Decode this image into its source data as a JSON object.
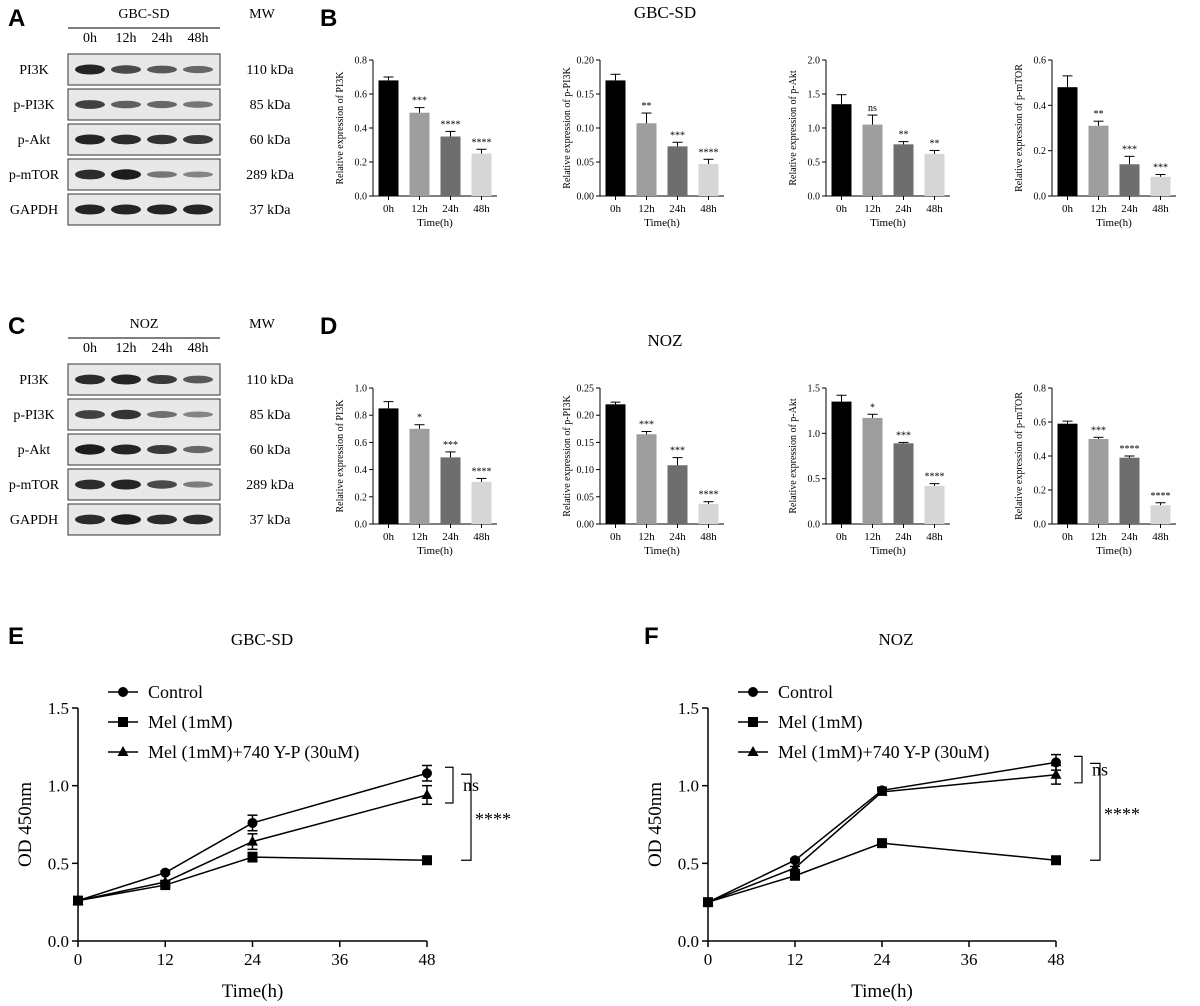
{
  "panels": {
    "A": {
      "letter": "A",
      "cell_line": "GBC-SD",
      "mw_header": "MW",
      "lanes": [
        "0h",
        "12h",
        "24h",
        "48h"
      ],
      "rows": [
        {
          "protein": "PI3K",
          "mw": "110 kDa",
          "intensity": [
            0.95,
            0.7,
            0.6,
            0.5
          ]
        },
        {
          "protein": "p-PI3K",
          "mw": "85 kDa",
          "intensity": [
            0.75,
            0.55,
            0.5,
            0.4
          ]
        },
        {
          "protein": "p-Akt",
          "mw": "60 kDa",
          "intensity": [
            0.95,
            0.9,
            0.85,
            0.8
          ]
        },
        {
          "protein": "p-mTOR",
          "mw": "289 kDa",
          "intensity": [
            0.9,
            1.0,
            0.4,
            0.3
          ]
        },
        {
          "protein": "GAPDH",
          "mw": "37 kDa",
          "intensity": [
            0.95,
            0.95,
            0.95,
            0.95
          ]
        }
      ]
    },
    "B": {
      "letter": "B",
      "title": "GBC-SD",
      "charts": [
        {
          "type": "bar",
          "ylabel": "Relative expression of PI3K",
          "xlabel": "Time(h)",
          "categories": [
            "0h",
            "12h",
            "24h",
            "48h"
          ],
          "values": [
            0.68,
            0.49,
            0.35,
            0.25
          ],
          "errors": [
            0.02,
            0.03,
            0.03,
            0.025
          ],
          "sig": [
            "",
            "***",
            "****",
            "****"
          ],
          "ylim": [
            0,
            0.8
          ],
          "yticks": [
            "0.0",
            "0.2",
            "0.4",
            "0.6",
            "0.8"
          ]
        },
        {
          "type": "bar",
          "ylabel": "Relative expression of p-PI3K",
          "xlabel": "Time(h)",
          "categories": [
            "0h",
            "12h",
            "24h",
            "48h"
          ],
          "values": [
            0.17,
            0.107,
            0.073,
            0.047
          ],
          "errors": [
            0.009,
            0.015,
            0.006,
            0.007
          ],
          "sig": [
            "",
            "**",
            "***",
            "****"
          ],
          "ylim": [
            0,
            0.2
          ],
          "yticks": [
            "0.00",
            "0.05",
            "0.10",
            "0.15",
            "0.20"
          ]
        },
        {
          "type": "bar",
          "ylabel": "Relative expression of p-Akt",
          "xlabel": "Time(h)",
          "categories": [
            "0h",
            "12h",
            "24h",
            "48h"
          ],
          "values": [
            1.35,
            1.05,
            0.76,
            0.62
          ],
          "errors": [
            0.14,
            0.14,
            0.04,
            0.05
          ],
          "sig": [
            "",
            "ns",
            "**",
            "**"
          ],
          "ylim": [
            0,
            2.0
          ],
          "yticks": [
            "0.0",
            "0.5",
            "1.0",
            "1.5",
            "2.0"
          ]
        },
        {
          "type": "bar",
          "ylabel": "Relative expression of p-mTOR",
          "xlabel": "Time(h)",
          "categories": [
            "0h",
            "12h",
            "24h",
            "48h"
          ],
          "values": [
            0.48,
            0.31,
            0.14,
            0.085
          ],
          "errors": [
            0.05,
            0.02,
            0.035,
            0.01
          ],
          "sig": [
            "",
            "**",
            "***",
            "***"
          ],
          "ylim": [
            0,
            0.6
          ],
          "yticks": [
            "0.0",
            "0.2",
            "0.4",
            "0.6"
          ]
        }
      ]
    },
    "C": {
      "letter": "C",
      "cell_line": "NOZ",
      "mw_header": "MW",
      "lanes": [
        "0h",
        "12h",
        "24h",
        "48h"
      ],
      "rows": [
        {
          "protein": "PI3K",
          "mw": "110 kDa",
          "intensity": [
            0.9,
            0.95,
            0.8,
            0.6
          ]
        },
        {
          "protein": "p-PI3K",
          "mw": "85 kDa",
          "intensity": [
            0.75,
            0.85,
            0.45,
            0.3
          ]
        },
        {
          "protein": "p-Akt",
          "mw": "60 kDa",
          "intensity": [
            1.0,
            0.95,
            0.8,
            0.5
          ]
        },
        {
          "protein": "p-mTOR",
          "mw": "289 kDa",
          "intensity": [
            0.9,
            0.95,
            0.7,
            0.35
          ]
        },
        {
          "protein": "GAPDH",
          "mw": "37 kDa",
          "intensity": [
            0.9,
            1.0,
            0.9,
            0.9
          ]
        }
      ]
    },
    "D": {
      "letter": "D",
      "title": "NOZ",
      "charts": [
        {
          "type": "bar",
          "ylabel": "Relative expression of PI3K",
          "xlabel": "Time(h)",
          "categories": [
            "0h",
            "12h",
            "24h",
            "48h"
          ],
          "values": [
            0.85,
            0.7,
            0.49,
            0.31
          ],
          "errors": [
            0.05,
            0.03,
            0.04,
            0.025
          ],
          "sig": [
            "",
            "*",
            "***",
            "****"
          ],
          "ylim": [
            0,
            1.0
          ],
          "yticks": [
            "0.0",
            "0.2",
            "0.4",
            "0.6",
            "0.8",
            "1.0"
          ]
        },
        {
          "type": "bar",
          "ylabel": "Relative expression of p-PI3K",
          "xlabel": "Time(h)",
          "categories": [
            "0h",
            "12h",
            "24h",
            "48h"
          ],
          "values": [
            0.22,
            0.165,
            0.108,
            0.037
          ],
          "errors": [
            0.004,
            0.005,
            0.014,
            0.004
          ],
          "sig": [
            "",
            "***",
            "***",
            "****"
          ],
          "ylim": [
            0,
            0.25
          ],
          "yticks": [
            "0.00",
            "0.05",
            "0.10",
            "0.15",
            "0.20",
            "0.25"
          ]
        },
        {
          "type": "bar",
          "ylabel": "Relative expression of p-Akt",
          "xlabel": "Time(h)",
          "categories": [
            "0h",
            "12h",
            "24h",
            "48h"
          ],
          "values": [
            1.35,
            1.17,
            0.89,
            0.42
          ],
          "errors": [
            0.07,
            0.04,
            0.01,
            0.025
          ],
          "sig": [
            "",
            "*",
            "***",
            "****"
          ],
          "ylim": [
            0,
            1.5
          ],
          "yticks": [
            "0.0",
            "0.5",
            "1.0",
            "1.5"
          ]
        },
        {
          "type": "bar",
          "ylabel": "Relative expression of p-mTOR",
          "xlabel": "Time(h)",
          "categories": [
            "0h",
            "12h",
            "24h",
            "48h"
          ],
          "values": [
            0.59,
            0.5,
            0.39,
            0.11
          ],
          "errors": [
            0.015,
            0.01,
            0.01,
            0.015
          ],
          "sig": [
            "",
            "***",
            "****",
            "****"
          ],
          "ylim": [
            0,
            0.8
          ],
          "yticks": [
            "0.0",
            "0.2",
            "0.4",
            "0.6",
            "0.8"
          ]
        }
      ]
    },
    "E": {
      "letter": "E",
      "title": "GBC-SD",
      "xlabel": "Time(h)",
      "ylabel": "OD 450nm",
      "xlim": [
        0,
        48
      ],
      "ylim": [
        0,
        1.5
      ],
      "xticks": [
        "0",
        "12",
        "24",
        "36",
        "48"
      ],
      "yticks": [
        "0.0",
        "0.5",
        "1.0",
        "1.5"
      ],
      "x": [
        0,
        12,
        24,
        48
      ],
      "series": [
        {
          "name": "Control",
          "marker": "circle",
          "values": [
            0.26,
            0.44,
            0.76,
            1.08
          ],
          "errors": [
            0,
            0.01,
            0.05,
            0.05
          ]
        },
        {
          "name": "Mel (1mM)",
          "marker": "square",
          "values": [
            0.26,
            0.36,
            0.54,
            0.52
          ],
          "errors": [
            0,
            0.01,
            0.03,
            0.01
          ]
        },
        {
          "name": "Mel (1mM)+740 Y-P (30uM)",
          "marker": "triangle",
          "values": [
            0.26,
            0.38,
            0.64,
            0.94
          ],
          "errors": [
            0,
            0.01,
            0.05,
            0.06
          ]
        }
      ],
      "annotations": [
        "ns",
        "****"
      ]
    },
    "F": {
      "letter": "F",
      "title": "NOZ",
      "xlabel": "Time(h)",
      "ylabel": "OD 450nm",
      "xlim": [
        0,
        48
      ],
      "ylim": [
        0,
        1.5
      ],
      "xticks": [
        "0",
        "12",
        "24",
        "36",
        "48"
      ],
      "yticks": [
        "0.0",
        "0.5",
        "1.0",
        "1.5"
      ],
      "x": [
        0,
        12,
        24,
        48
      ],
      "series": [
        {
          "name": "Control",
          "marker": "circle",
          "values": [
            0.25,
            0.52,
            0.97,
            1.15
          ],
          "errors": [
            0,
            0.01,
            0.02,
            0.05
          ]
        },
        {
          "name": "Mel (1mM)",
          "marker": "square",
          "values": [
            0.25,
            0.42,
            0.63,
            0.52
          ],
          "errors": [
            0,
            0.01,
            0.01,
            0.01
          ]
        },
        {
          "name": "Mel (1mM)+740 Y-P (30uM)",
          "marker": "triangle",
          "values": [
            0.25,
            0.47,
            0.96,
            1.07
          ],
          "errors": [
            0,
            0.01,
            0.02,
            0.06
          ]
        }
      ],
      "annotations": [
        "ns",
        "****"
      ]
    }
  },
  "chart_data": [
    {
      "type": "bar",
      "title": "GBC-SD",
      "ylabel": "Relative expression of PI3K",
      "xlabel": "Time(h)",
      "categories": [
        "0h",
        "12h",
        "24h",
        "48h"
      ],
      "values": [
        0.68,
        0.49,
        0.35,
        0.25
      ],
      "ylim": [
        0,
        0.8
      ]
    },
    {
      "type": "bar",
      "title": "GBC-SD",
      "ylabel": "Relative expression of p-PI3K",
      "xlabel": "Time(h)",
      "categories": [
        "0h",
        "12h",
        "24h",
        "48h"
      ],
      "values": [
        0.17,
        0.107,
        0.073,
        0.047
      ],
      "ylim": [
        0,
        0.2
      ]
    },
    {
      "type": "bar",
      "title": "GBC-SD",
      "ylabel": "Relative expression of p-Akt",
      "xlabel": "Time(h)",
      "categories": [
        "0h",
        "12h",
        "24h",
        "48h"
      ],
      "values": [
        1.35,
        1.05,
        0.76,
        0.62
      ],
      "ylim": [
        0,
        2.0
      ]
    },
    {
      "type": "bar",
      "title": "GBC-SD",
      "ylabel": "Relative expression of p-mTOR",
      "xlabel": "Time(h)",
      "categories": [
        "0h",
        "12h",
        "24h",
        "48h"
      ],
      "values": [
        0.48,
        0.31,
        0.14,
        0.085
      ],
      "ylim": [
        0,
        0.6
      ]
    },
    {
      "type": "bar",
      "title": "NOZ",
      "ylabel": "Relative expression of PI3K",
      "xlabel": "Time(h)",
      "categories": [
        "0h",
        "12h",
        "24h",
        "48h"
      ],
      "values": [
        0.85,
        0.7,
        0.49,
        0.31
      ],
      "ylim": [
        0,
        1.0
      ]
    },
    {
      "type": "bar",
      "title": "NOZ",
      "ylabel": "Relative expression of p-PI3K",
      "xlabel": "Time(h)",
      "categories": [
        "0h",
        "12h",
        "24h",
        "48h"
      ],
      "values": [
        0.22,
        0.165,
        0.108,
        0.037
      ],
      "ylim": [
        0,
        0.25
      ]
    },
    {
      "type": "bar",
      "title": "NOZ",
      "ylabel": "Relative expression of p-Akt",
      "xlabel": "Time(h)",
      "categories": [
        "0h",
        "12h",
        "24h",
        "48h"
      ],
      "values": [
        1.35,
        1.17,
        0.89,
        0.42
      ],
      "ylim": [
        0,
        1.5
      ]
    },
    {
      "type": "bar",
      "title": "NOZ",
      "ylabel": "Relative expression of p-mTOR",
      "xlabel": "Time(h)",
      "categories": [
        "0h",
        "12h",
        "24h",
        "48h"
      ],
      "values": [
        0.59,
        0.5,
        0.39,
        0.11
      ],
      "ylim": [
        0,
        0.8
      ]
    },
    {
      "type": "line",
      "title": "GBC-SD",
      "xlabel": "Time(h)",
      "ylabel": "OD 450nm",
      "x": [
        0,
        12,
        24,
        48
      ],
      "xlim": [
        0,
        48
      ],
      "ylim": [
        0,
        1.5
      ],
      "series": [
        {
          "name": "Control",
          "values": [
            0.26,
            0.44,
            0.76,
            1.08
          ]
        },
        {
          "name": "Mel (1mM)",
          "values": [
            0.26,
            0.36,
            0.54,
            0.52
          ]
        },
        {
          "name": "Mel (1mM)+740 Y-P (30uM)",
          "values": [
            0.26,
            0.38,
            0.64,
            0.94
          ]
        }
      ]
    },
    {
      "type": "line",
      "title": "NOZ",
      "xlabel": "Time(h)",
      "ylabel": "OD 450nm",
      "x": [
        0,
        12,
        24,
        48
      ],
      "xlim": [
        0,
        48
      ],
      "ylim": [
        0,
        1.5
      ],
      "series": [
        {
          "name": "Control",
          "values": [
            0.25,
            0.52,
            0.97,
            1.15
          ]
        },
        {
          "name": "Mel (1mM)",
          "values": [
            0.25,
            0.42,
            0.63,
            0.52
          ]
        },
        {
          "name": "Mel (1mM)+740 Y-P (30uM)",
          "values": [
            0.25,
            0.47,
            0.96,
            1.07
          ]
        }
      ]
    }
  ],
  "colors": {
    "bar_fills": [
      "#000000",
      "#9e9e9e",
      "#6e6e6e",
      "#d6d6d6"
    ],
    "blot_background": "#e8e8e8",
    "band": "#111111"
  }
}
